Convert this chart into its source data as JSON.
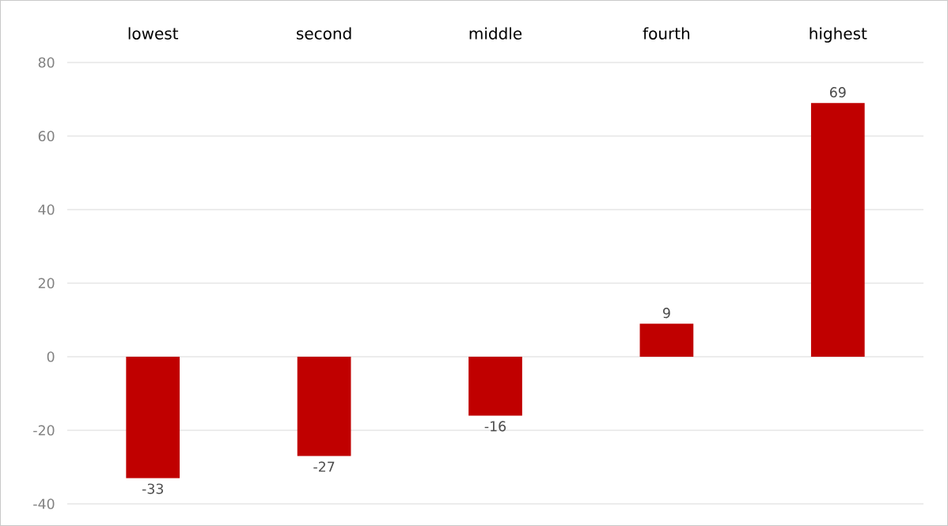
{
  "chart_data": {
    "type": "bar",
    "categories": [
      "lowest",
      "second",
      "middle",
      "fourth",
      "highest"
    ],
    "values": [
      -33,
      -27,
      -16,
      9,
      69
    ],
    "color": "#c00000",
    "ylim": [
      -40,
      80
    ],
    "yticks": [
      -40,
      -20,
      0,
      20,
      40,
      60,
      80
    ],
    "grid": "y",
    "data_labels": true
  }
}
